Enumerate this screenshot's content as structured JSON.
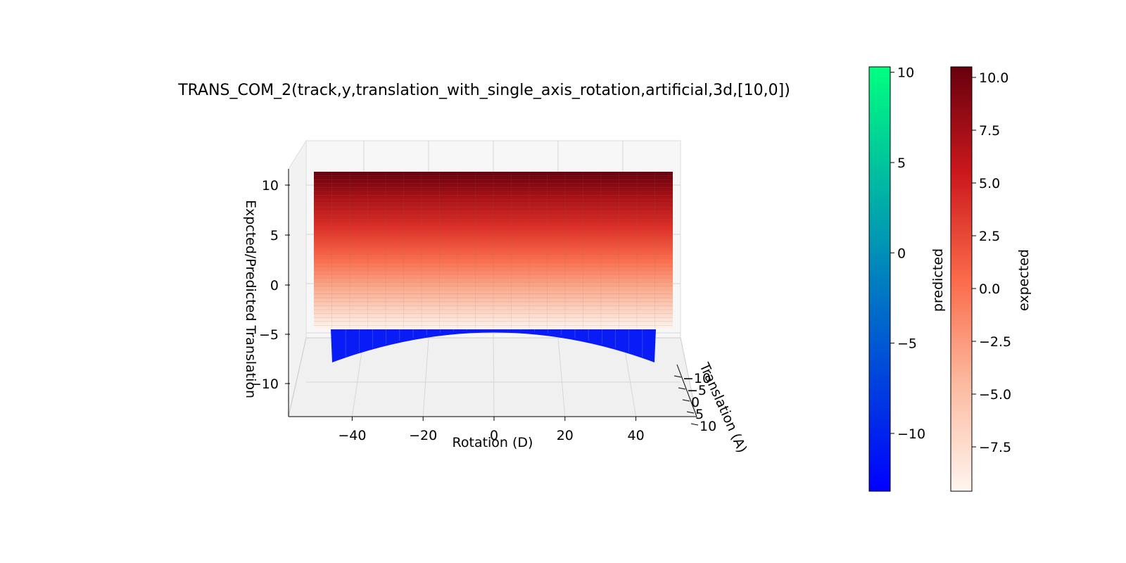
{
  "chart_data": {
    "type": "surface3d",
    "title": "TRANS_COM_2(track,y,translation_with_single_axis_rotation,artificial,3d,[10,0])",
    "xlabel": "Rotation (D)",
    "ylabel": "Translation (A)",
    "zlabel": "Expcted/Predicted Translation",
    "x_ticks": [
      "−40",
      "−20",
      "0",
      "20",
      "40"
    ],
    "y_ticks": [
      "−10",
      "−5",
      "0",
      "5",
      "10"
    ],
    "z_ticks": [
      "10",
      "5",
      "0",
      "−5",
      "−10"
    ],
    "xlim": [
      -55,
      55
    ],
    "ylim": [
      -10,
      10
    ],
    "zlim": [
      -14,
      12
    ],
    "grid": true,
    "series": [
      {
        "name": "predicted",
        "cmap": "winter",
        "x_range": [
          -50,
          50
        ],
        "z_at_x": [
          [
            -50,
            7.6
          ],
          [
            -45,
            -12.8
          ],
          [
            0,
            -9.5
          ],
          [
            45,
            -12.8
          ],
          [
            50,
            7.6
          ]
        ]
      },
      {
        "name": "expected",
        "cmap": "Reds",
        "x_range": [
          -50,
          50
        ],
        "z_range": [
          -9.5,
          10.5
        ]
      }
    ],
    "colorbars": [
      {
        "label": "predicted",
        "ticks": [
          "10",
          "5",
          "0",
          "−5",
          "−10"
        ],
        "tick_values": [
          10,
          5,
          0,
          -5,
          -10
        ],
        "range": [
          -13.2,
          10.3
        ],
        "colors": [
          "#0000ff",
          "#00ff80"
        ]
      },
      {
        "label": "expected",
        "ticks": [
          "10.0",
          "7.5",
          "5.0",
          "2.5",
          "0.0",
          "−2.5",
          "−5.0",
          "−7.5"
        ],
        "tick_values": [
          10,
          7.5,
          5,
          2.5,
          0,
          -2.5,
          -5,
          -7.5
        ],
        "range": [
          -9.6,
          10.5
        ],
        "colors": [
          "#fff5f0",
          "#fcbba1",
          "#fb6a4a",
          "#cb181d",
          "#67000d"
        ]
      }
    ]
  }
}
